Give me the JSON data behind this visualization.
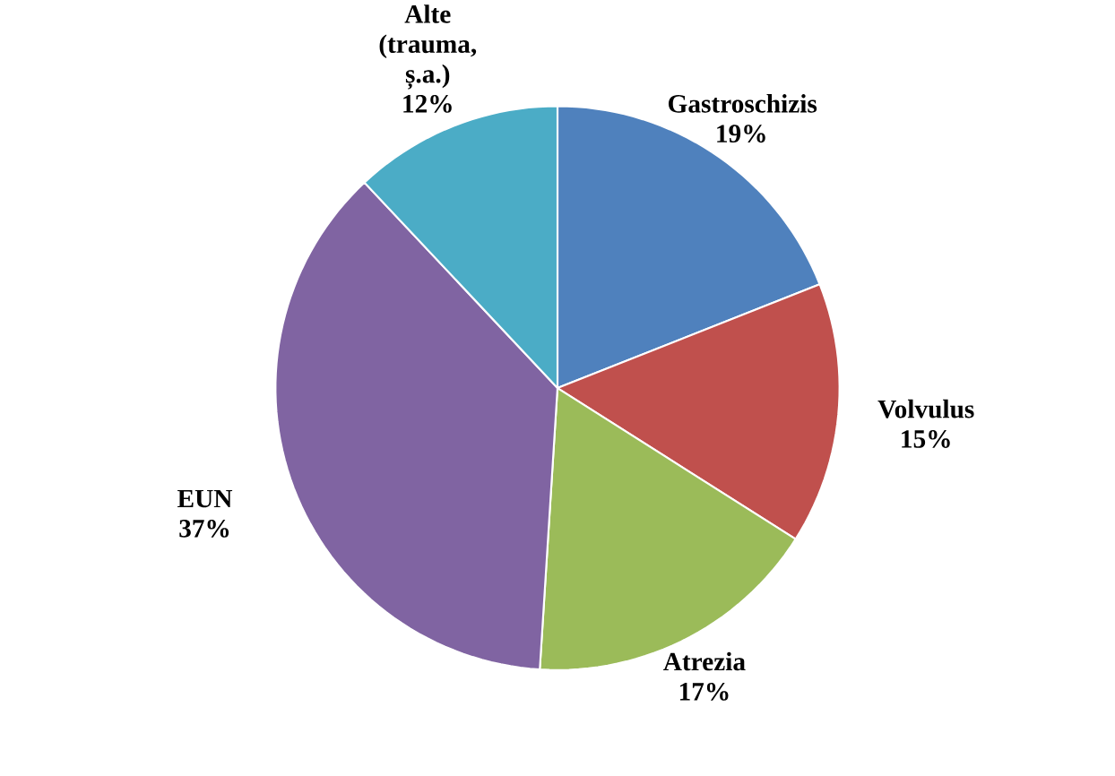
{
  "chart_data": {
    "type": "pie",
    "categories": [
      "Gastroschizis",
      "Volvulus",
      "Atrezia",
      "EUN",
      "Alte (trauma, ș.a.)"
    ],
    "values": [
      19,
      15,
      17,
      37,
      12
    ],
    "colors": [
      "#4f81bd",
      "#c0504d",
      "#9bbb59",
      "#8064a2",
      "#4bacc6"
    ],
    "value_labels": [
      "19%",
      "15%",
      "17%",
      "37%",
      "12%"
    ]
  }
}
